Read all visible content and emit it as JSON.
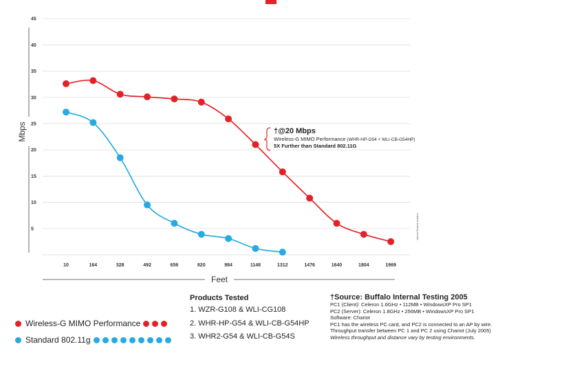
{
  "chart_data": {
    "type": "line",
    "xlabel": "Feet",
    "ylabel": "Mbps",
    "ylim": [
      0,
      45
    ],
    "y_ticks": [
      "5",
      "10",
      "15",
      "20",
      "25",
      "30",
      "35",
      "40",
      "45"
    ],
    "categories": [
      "10",
      "164",
      "328",
      "492",
      "656",
      "820",
      "984",
      "1148",
      "1312",
      "1476",
      "1640",
      "1804",
      "1969"
    ],
    "grid": true,
    "series": [
      {
        "name": "Wireless-G MIMO Performance",
        "color": "#e32227",
        "values": [
          32.6,
          33.2,
          30.6,
          30.1,
          29.7,
          29.1,
          25.9,
          21.0,
          15.8,
          10.8,
          6.0,
          3.9,
          2.5
        ]
      },
      {
        "name": "Standard 802.11g",
        "color": "#27aae1",
        "values": [
          27.2,
          25.2,
          18.5,
          9.5,
          6.0,
          3.9,
          3.1,
          1.2,
          0.5,
          null,
          null,
          null,
          null
        ]
      }
    ],
    "annotation": {
      "title": "†@20 Mbps",
      "line1_main": "Wireless-G MIMO Performance",
      "line1_detail": " (WHR-HP-G54 + WLI-CB-G54HP)",
      "line2": "5X Further than Standard 802.11G"
    },
    "vertical_note": "outdoor testing results"
  },
  "legend": {
    "mimo_label": "Wireless-G MIMO Performance",
    "standard_label": "Standard 802.11g"
  },
  "products": {
    "title": "Products Tested",
    "items": [
      "1. WZR-G108 & WLI-CG108",
      "2. WHR-HP-G54 & WLI-CB-G54HP",
      "3. WHR2-G54 & WLI-CB-G54S"
    ]
  },
  "source": {
    "title": "†Source: Buffalo Internal Testing 2005",
    "lines": [
      "PC1 (Client): Celeron 1.6GHz • 112MB • WindowsXP Pro SP1",
      "PC2 (Server): Celeron 1.8GHz • 256MB • WindowsXP Pro SP1",
      "Software: Chariot",
      "PC1 has the wireless PC card, and PC2 is connected to an AP by wire.",
      "Throughput transfer between PC 1 and PC 2 using Chariot (July 2005)"
    ],
    "note": "Wireless throughput and distance vary by testing environments."
  }
}
